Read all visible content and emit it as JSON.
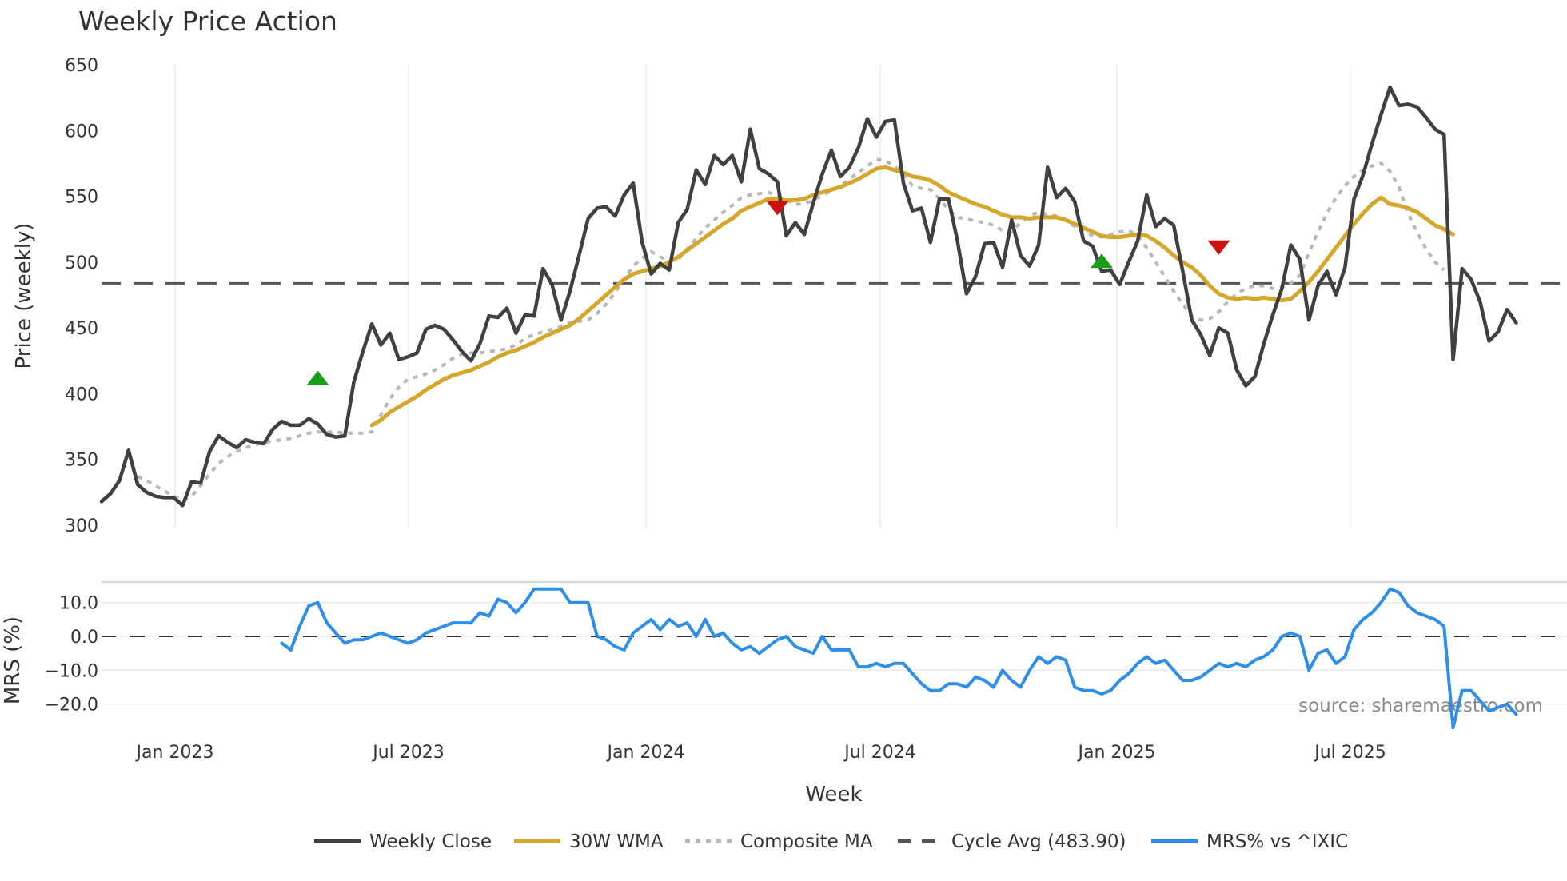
{
  "title": "Weekly Price Action",
  "source_note": "source: sharemaestro.com",
  "legend": [
    {
      "label": "Weekly Close",
      "color": "#404040",
      "style": "solid"
    },
    {
      "label": "30W WMA",
      "color": "#d4a62a",
      "style": "solid"
    },
    {
      "label": "Composite MA",
      "color": "#b8b8b8",
      "style": "dotted"
    },
    {
      "label": "Cycle Avg (483.90)",
      "color": "#555555",
      "style": "dashed"
    },
    {
      "label": "MRS% vs ^IXIC",
      "color": "#2f8fe6",
      "style": "solid"
    }
  ],
  "colors": {
    "close": "#404040",
    "wma": "#d4a62a",
    "composite": "#b8b8b8",
    "cycle": "#555555",
    "mrs": "#2f8fe6",
    "buy": "#1a9e1a",
    "sell": "#cc1111",
    "grid": "#e8ecf0"
  },
  "chart_data": [
    {
      "type": "line",
      "title": "Weekly Price Action",
      "xlabel": "Week",
      "ylabel": "Price (weekly)",
      "ylim": [
        300,
        650
      ],
      "yticks": [
        300,
        350,
        400,
        450,
        500,
        550,
        600,
        650
      ],
      "xticks": [
        "Jan 2023",
        "Jul 2023",
        "Jan 2024",
        "Jul 2024",
        "Jan 2025",
        "Jul 2025"
      ],
      "grid": true,
      "legend_position": "bottom",
      "cycle_avg": 483.9,
      "series": [
        {
          "name": "Weekly Close",
          "start_week": 0,
          "values": [
            318,
            324,
            334,
            357,
            331,
            325,
            322,
            321,
            321,
            315,
            333,
            332,
            356,
            368,
            363,
            359,
            365,
            363,
            362,
            373,
            379,
            376,
            376,
            381,
            377,
            369,
            367,
            368,
            409,
            432,
            453,
            437,
            446,
            426,
            428,
            431,
            449,
            452,
            449,
            441,
            432,
            425,
            438,
            459,
            458,
            465,
            446,
            460,
            459,
            495,
            483,
            456,
            478,
            505,
            533,
            541,
            542,
            535,
            551,
            560,
            515,
            491,
            499,
            494,
            530,
            540,
            570,
            559,
            581,
            574,
            581,
            561,
            601,
            571,
            567,
            561,
            520,
            530,
            521,
            545,
            567,
            585,
            565,
            572,
            587,
            609,
            595,
            607,
            608,
            560,
            539,
            541,
            515,
            548,
            548,
            516,
            476,
            489,
            514,
            515,
            496,
            532,
            505,
            497,
            513,
            572,
            549,
            556,
            546,
            516,
            512,
            493,
            494,
            483,
            500,
            516,
            551,
            527,
            533,
            528,
            493,
            456,
            445,
            429,
            450,
            446,
            418,
            406,
            413,
            438,
            460,
            480,
            513,
            502,
            456,
            482,
            493,
            475,
            496,
            548,
            566,
            590,
            612,
            633,
            619,
            620,
            618,
            610,
            601,
            597,
            426,
            495,
            487,
            470,
            440,
            447,
            464,
            454
          ]
        },
        {
          "name": "30W WMA",
          "start_week": 30,
          "values": [
            376,
            380,
            386,
            390,
            394,
            398,
            403,
            407,
            411,
            414,
            416,
            418,
            421,
            424,
            428,
            431,
            433,
            436,
            439,
            443,
            446,
            449,
            452,
            457,
            463,
            469,
            475,
            481,
            487,
            491,
            493,
            495,
            497,
            500,
            504,
            509,
            514,
            519,
            524,
            529,
            533,
            539,
            542,
            545,
            548,
            548,
            547,
            547,
            548,
            551,
            553,
            555,
            557,
            560,
            563,
            567,
            571,
            572,
            570,
            568,
            565,
            564,
            562,
            558,
            553,
            550,
            547,
            544,
            542,
            539,
            536,
            534,
            534,
            533,
            534,
            534,
            534,
            532,
            529,
            526,
            523,
            520,
            519,
            519,
            520,
            521,
            520,
            516,
            511,
            505,
            500,
            496,
            490,
            482,
            476,
            473,
            472,
            473,
            472,
            473,
            472,
            471,
            472,
            478,
            485,
            493,
            502,
            511,
            520,
            529,
            537,
            544,
            549,
            544,
            543,
            541,
            538,
            533,
            528,
            525,
            521
          ]
        },
        {
          "name": "Composite MA",
          "start_week": 4,
          "values": [
            337,
            334,
            330,
            326,
            322,
            319,
            322,
            330,
            339,
            347,
            352,
            356,
            359,
            361,
            363,
            364,
            365,
            366,
            368,
            370,
            371,
            371,
            371,
            370,
            370,
            370,
            371,
            384,
            396,
            405,
            411,
            413,
            415,
            418,
            422,
            427,
            430,
            431,
            431,
            432,
            433,
            434,
            437,
            442,
            445,
            447,
            449,
            451,
            454,
            455,
            456,
            461,
            468,
            477,
            487,
            497,
            503,
            508,
            504,
            501,
            502,
            510,
            518,
            526,
            532,
            538,
            543,
            549,
            551,
            552,
            553,
            550,
            547,
            544,
            544,
            547,
            551,
            554,
            558,
            563,
            568,
            573,
            578,
            577,
            573,
            567,
            558,
            556,
            555,
            548,
            540,
            534,
            533,
            531,
            530,
            528,
            524,
            523,
            530,
            535,
            538,
            536,
            535,
            532,
            527,
            523,
            520,
            519,
            521,
            523,
            524,
            520,
            511,
            500,
            489,
            478,
            468,
            459,
            456,
            457,
            462,
            470,
            476,
            480,
            482,
            482,
            480,
            481,
            484,
            490,
            507,
            523,
            537,
            549,
            558,
            565,
            570,
            573,
            575,
            569,
            557,
            537,
            523,
            510,
            500,
            494
          ]
        },
        {
          "name": "Cycle Avg (483.90)",
          "value": 483.9
        }
      ],
      "markers": [
        {
          "type": "buy",
          "week": 24,
          "price": 412
        },
        {
          "type": "sell",
          "week": 75,
          "price": 541
        },
        {
          "type": "buy",
          "week": 111,
          "price": 501
        },
        {
          "type": "sell",
          "week": 124,
          "price": 511
        }
      ]
    },
    {
      "type": "line",
      "xlabel": "Week",
      "ylabel": "MRS (%)",
      "ylim": [
        -27,
        17
      ],
      "yticks": [
        "10.0",
        "0.0",
        "−10.0",
        "−20.0"
      ],
      "ytick_values": [
        10,
        0,
        -10,
        -20
      ],
      "zero_line": 0,
      "series": [
        {
          "name": "MRS% vs ^IXIC",
          "start_week": 20,
          "values": [
            -2,
            -4,
            3,
            9,
            10,
            4,
            1,
            -2,
            -1,
            -1,
            0,
            1,
            0,
            -1,
            -2,
            -1,
            1,
            2,
            3,
            4,
            4,
            4,
            7,
            6,
            11,
            10,
            7,
            10,
            14,
            14,
            14,
            14,
            10,
            10,
            10,
            0,
            -1,
            -3,
            -4,
            1,
            3,
            5,
            2,
            5,
            3,
            4,
            0,
            5,
            0,
            1,
            -2,
            -4,
            -3,
            -5,
            -3,
            -1,
            0,
            -3,
            -4,
            -5,
            0,
            -4,
            -4,
            -4,
            -9,
            -9,
            -8,
            -9,
            -8,
            -8,
            -11,
            -14,
            -16,
            -16,
            -14,
            -14,
            -15,
            -12,
            -13,
            -15,
            -10,
            -13,
            -15,
            -10,
            -6,
            -8,
            -6,
            -7,
            -15,
            -16,
            -16,
            -17,
            -16,
            -13,
            -11,
            -8,
            -6,
            -8,
            -7,
            -10,
            -13,
            -13,
            -12,
            -10,
            -8,
            -9,
            -8,
            -9,
            -7,
            -6,
            -4,
            0,
            1,
            0,
            -10,
            -5,
            -4,
            -8,
            -6,
            2,
            5,
            7,
            10,
            14,
            13,
            9,
            7,
            6,
            5,
            3,
            -27,
            -16,
            -16,
            -19,
            -22,
            -21,
            -20,
            -23
          ]
        }
      ]
    }
  ]
}
